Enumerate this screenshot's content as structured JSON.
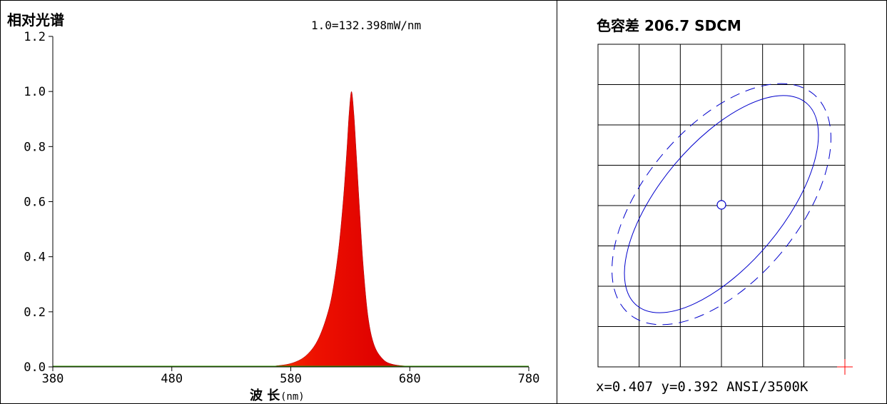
{
  "chart_data": [
    {
      "type": "area",
      "title": "相对光谱",
      "annotation": "1.0=132.398mW/nm",
      "xlabel_main": "波 长",
      "xlabel_unit": "(nm)",
      "xlim": [
        380,
        780
      ],
      "ylim": [
        0,
        1.2
      ],
      "xticks": [
        380,
        480,
        580,
        680,
        780
      ],
      "yticks": [
        "0.0",
        "0.2",
        "0.4",
        "0.6",
        "0.8",
        "1.0",
        "1.2"
      ],
      "xtick_labels": [
        "380",
        "480",
        "580",
        "680",
        "780"
      ],
      "x": [
        380,
        540,
        570,
        585,
        595,
        603,
        610,
        615,
        620,
        624,
        627,
        629,
        631,
        633,
        635,
        638,
        641,
        645,
        650,
        657,
        665,
        680,
        700,
        780
      ],
      "y": [
        0.0,
        0.0,
        0.005,
        0.02,
        0.05,
        0.1,
        0.18,
        0.27,
        0.42,
        0.6,
        0.78,
        0.92,
        1.0,
        0.92,
        0.78,
        0.56,
        0.36,
        0.18,
        0.08,
        0.03,
        0.01,
        0.002,
        0.0,
        0.0
      ]
    },
    {
      "type": "scatter",
      "title": "色容差 206.7 SDCM",
      "grid": true,
      "grid_columns": 6,
      "grid_rows": 8,
      "center_marker": "open-circle",
      "ellipses": [
        "solid",
        "dashed"
      ],
      "off_chart_marker": "red-cross",
      "readout": "x=0.407 y=0.392 ANSI/3500K",
      "x": 0.407,
      "y": 0.392,
      "standard": "ANSI/3500K"
    }
  ],
  "colors": {
    "frame": "#000000",
    "spectrum_high": "#cc0000",
    "spectrum_mid": "#ff3300",
    "spectrum_low": "#ff9900",
    "ellipse": "#0000cc",
    "cross": "#ff0000"
  }
}
